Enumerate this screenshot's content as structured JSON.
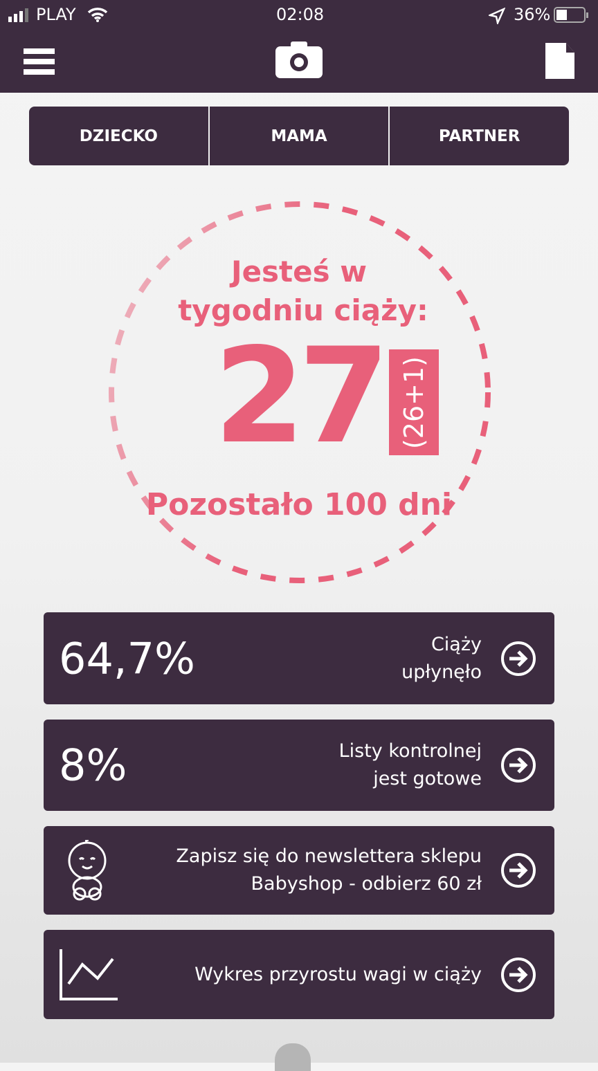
{
  "status": {
    "carrier": "PLAY",
    "time": "02:08",
    "battery": "36%",
    "battery_level": 0.36
  },
  "tabs": [
    "DZIECKO",
    "MAMA",
    "PARTNER"
  ],
  "pregnancy": {
    "line1": "Jesteś w",
    "line2": "tygodniu ciąży:",
    "week": "27",
    "detail": "(26+1)",
    "remaining": "Pozostało 100 dni"
  },
  "cards": [
    {
      "value": "64,7%",
      "line1": "Ciąży",
      "line2": "upłynęło"
    },
    {
      "value": "8%",
      "line1": "Listy kontrolnej",
      "line2": "jest gotowe"
    },
    {
      "icon": "baby-icon",
      "line1": "Zapisz się do newslettera sklepu",
      "line2": "Babyshop - odbierz 60 zł"
    },
    {
      "icon": "chart-icon",
      "line1": "Wykres przyrostu wagi w ciąży"
    }
  ],
  "colors": {
    "primary": "#3d2c40",
    "accent": "#e8607a"
  }
}
